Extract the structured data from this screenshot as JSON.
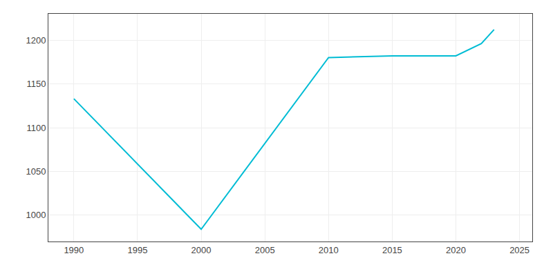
{
  "chart_data": {
    "type": "line",
    "x": [
      1990,
      2000,
      2010,
      2015,
      2020,
      2022,
      2023
    ],
    "values": [
      1133,
      984,
      1180,
      1182,
      1182,
      1196,
      1212
    ],
    "color": "#00BCD4",
    "xlim": [
      1988,
      2026
    ],
    "ylim": [
      970,
      1230
    ],
    "xticks": [
      1990,
      1995,
      2000,
      2005,
      2010,
      2015,
      2020,
      2025
    ],
    "yticks": [
      1000,
      1050,
      1100,
      1150,
      1200
    ],
    "grid": true
  }
}
